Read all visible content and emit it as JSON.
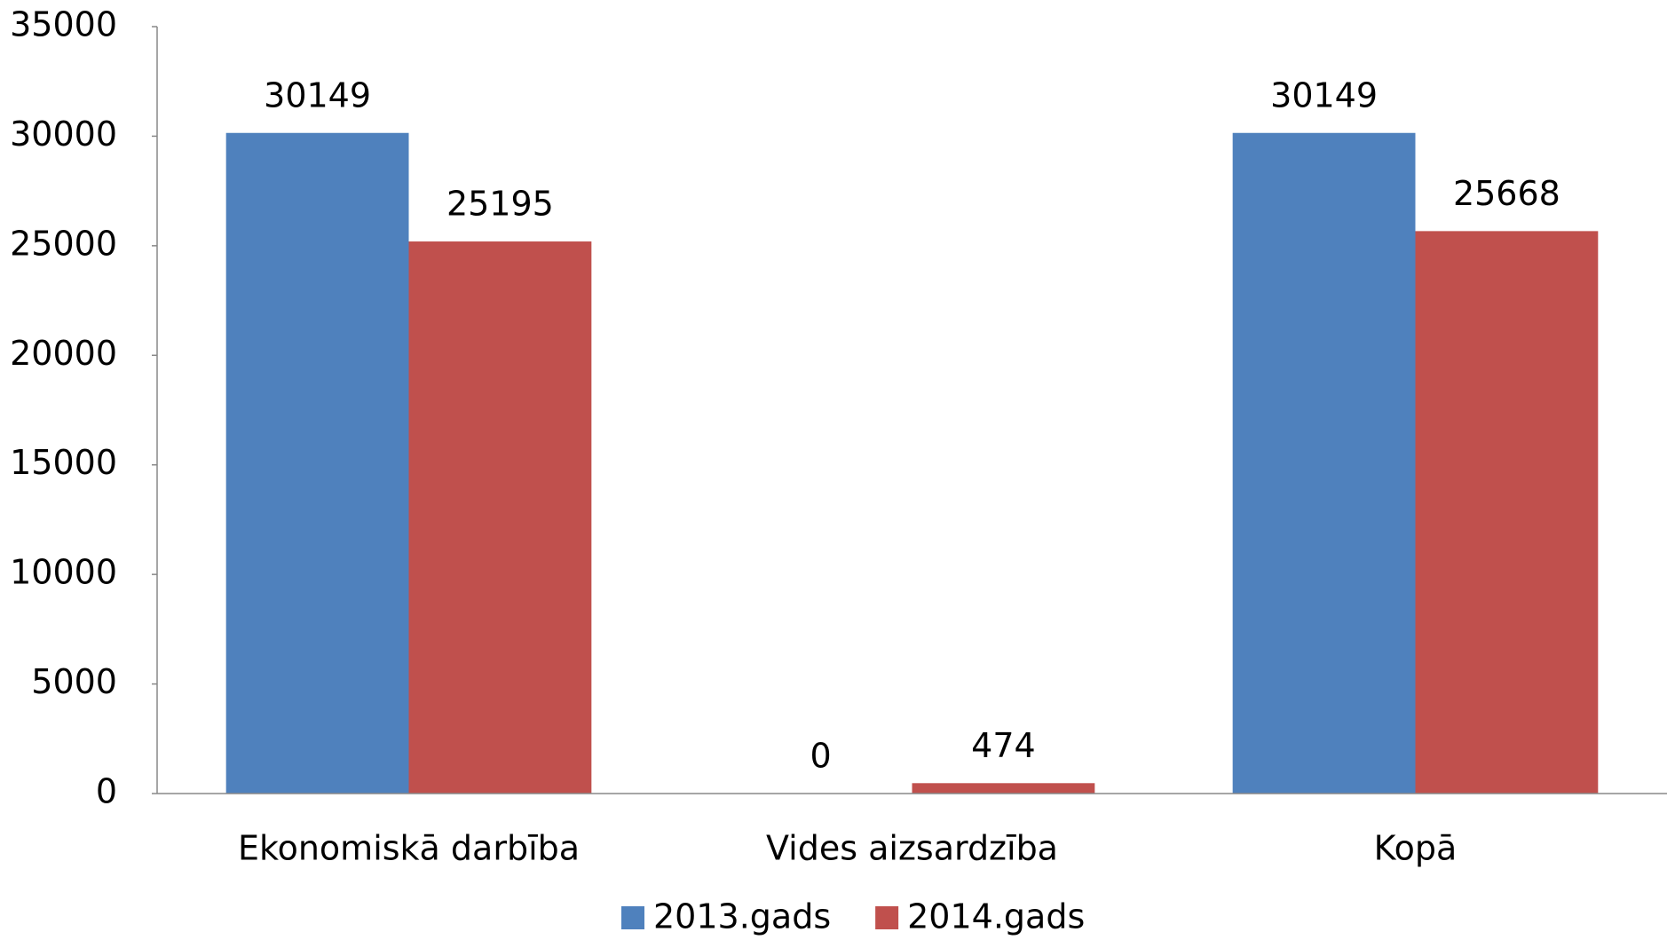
{
  "chart_data": {
    "type": "bar",
    "categories": [
      "Ekonomiskā darbība",
      "Vides aizsardzība",
      "Kopā"
    ],
    "series": [
      {
        "name": "2013.gads",
        "color": "#4f81bd",
        "values": [
          30149,
          0,
          30149
        ]
      },
      {
        "name": "2014.gads",
        "color": "#c0504d",
        "values": [
          25195,
          474,
          25668
        ]
      }
    ],
    "ylim": [
      0,
      35000
    ],
    "yticks": [
      0,
      5000,
      10000,
      15000,
      20000,
      25000,
      30000,
      35000
    ],
    "grid": false,
    "data_labels": true,
    "legend": "bottom"
  }
}
